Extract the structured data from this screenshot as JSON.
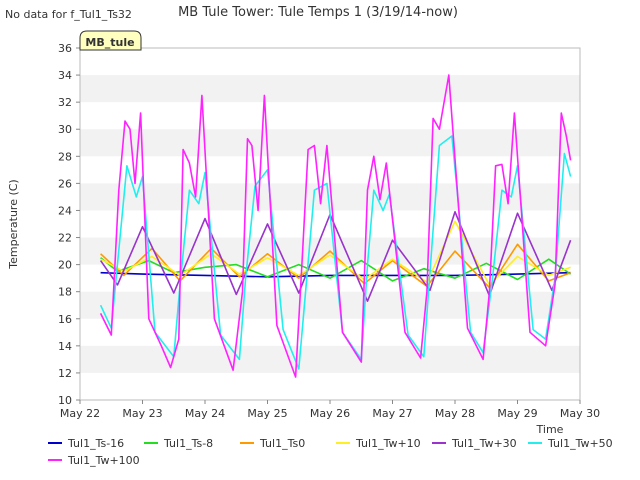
{
  "notice": "No data for f_Tul1_Ts32",
  "badge": "MB_tule",
  "colors": {
    "Tul1_Ts-16": "#0000cc",
    "Tul1_Ts-8": "#22dd22",
    "Tul1_Ts0": "#ff9900",
    "Tul1_Tw+10": "#ffee22",
    "Tul1_Tw+30": "#9933cc",
    "Tul1_Tw+50": "#22eeee",
    "Tul1_Tw+100": "#ff22ff"
  },
  "chart_data": {
    "type": "line",
    "title": "MB Tule Tower: Tule Temps 1 (3/19/14-now)",
    "xlabel": "Time",
    "ylabel": "Temperature (C)",
    "xlim": [
      "May 22",
      "May 30"
    ],
    "ylim": [
      10,
      36
    ],
    "yticks": [
      10,
      12,
      14,
      16,
      18,
      20,
      22,
      24,
      26,
      28,
      30,
      32,
      34,
      36
    ],
    "xticks": [
      "May 22",
      "May 23",
      "May 24",
      "May 25",
      "May 26",
      "May 27",
      "May 28",
      "May 29",
      "May 30"
    ],
    "grid": "horizontal bands",
    "legend": "bottom",
    "x_unit": "days from May 22",
    "series": [
      {
        "name": "Tul1_Ts-16",
        "x": [
          0.33,
          1.0,
          2.0,
          3.0,
          4.0,
          5.0,
          6.0,
          7.0,
          7.85
        ],
        "values": [
          19.4,
          19.3,
          19.2,
          19.1,
          19.2,
          19.2,
          19.2,
          19.3,
          19.4
        ]
      },
      {
        "name": "Tul1_Ts-8",
        "x": [
          0.33,
          0.6,
          1.1,
          1.5,
          2.0,
          2.5,
          3.0,
          3.5,
          4.0,
          4.5,
          5.0,
          5.5,
          6.0,
          6.5,
          7.0,
          7.5,
          7.85
        ],
        "values": [
          20.5,
          19.5,
          20.3,
          19.4,
          19.8,
          20.0,
          19.1,
          20.0,
          19.0,
          20.3,
          18.8,
          19.7,
          19.0,
          20.1,
          18.9,
          20.4,
          19.3
        ]
      },
      {
        "name": "Tul1_Ts0",
        "x": [
          0.33,
          0.7,
          1.15,
          1.6,
          2.1,
          2.55,
          3.0,
          3.5,
          4.0,
          4.55,
          5.0,
          5.55,
          6.0,
          6.55,
          7.0,
          7.5,
          7.85
        ],
        "values": [
          20.8,
          19.2,
          21.2,
          18.8,
          21.2,
          19.1,
          20.8,
          19.0,
          21.0,
          18.6,
          20.3,
          18.4,
          21.0,
          18.3,
          21.5,
          18.8,
          19.4
        ]
      },
      {
        "name": "Tul1_Tw+10",
        "x": [
          0.33,
          0.7,
          1.15,
          1.6,
          2.1,
          2.55,
          3.0,
          3.5,
          4.0,
          4.55,
          5.0,
          5.55,
          6.0,
          6.55,
          7.0,
          7.5,
          7.85
        ],
        "values": [
          20.4,
          19.5,
          20.6,
          19.2,
          20.8,
          19.3,
          20.5,
          19.2,
          20.7,
          18.9,
          20.4,
          18.7,
          23.2,
          18.5,
          20.6,
          19.2,
          19.8
        ]
      },
      {
        "name": "Tul1_Tw+30",
        "x": [
          0.33,
          0.6,
          1.0,
          1.5,
          2.0,
          2.5,
          3.0,
          3.5,
          4.0,
          4.6,
          5.0,
          5.6,
          6.0,
          6.55,
          7.0,
          7.55,
          7.85
        ],
        "values": [
          20.3,
          18.5,
          22.8,
          17.9,
          23.4,
          17.8,
          23.0,
          17.9,
          23.7,
          17.3,
          21.8,
          18.1,
          23.9,
          17.7,
          23.8,
          18.1,
          21.8
        ]
      },
      {
        "name": "Tul1_Tw+50",
        "x": [
          0.33,
          0.5,
          0.75,
          0.9,
          1.0,
          1.2,
          1.5,
          1.6,
          1.75,
          1.9,
          2.0,
          2.25,
          2.55,
          2.65,
          2.8,
          3.0,
          3.25,
          3.5,
          3.6,
          3.75,
          3.95,
          4.2,
          4.5,
          4.6,
          4.7,
          4.85,
          4.95,
          5.25,
          5.5,
          5.6,
          5.75,
          5.95,
          6.25,
          6.45,
          6.6,
          6.75,
          6.9,
          7.0,
          7.25,
          7.45,
          7.6,
          7.75,
          7.85
        ],
        "values": [
          17.0,
          15.3,
          27.3,
          25.0,
          26.5,
          15.0,
          13.2,
          18.5,
          25.5,
          24.5,
          26.8,
          14.8,
          13.0,
          19.0,
          25.8,
          27.0,
          15.2,
          12.3,
          17.5,
          25.5,
          26.0,
          15.0,
          13.0,
          20.0,
          25.5,
          24.0,
          25.2,
          14.8,
          13.2,
          19.5,
          28.8,
          29.5,
          15.0,
          13.5,
          19.0,
          25.5,
          25.0,
          27.3,
          15.2,
          14.5,
          19.0,
          28.2,
          26.5
        ]
      },
      {
        "name": "Tul1_Tw+100",
        "x": [
          0.33,
          0.5,
          0.62,
          0.72,
          0.8,
          0.88,
          0.97,
          1.1,
          1.3,
          1.45,
          1.58,
          1.65,
          1.75,
          1.85,
          1.95,
          2.15,
          2.45,
          2.6,
          2.68,
          2.75,
          2.85,
          2.95,
          3.15,
          3.45,
          3.55,
          3.65,
          3.75,
          3.85,
          3.95,
          4.2,
          4.5,
          4.6,
          4.7,
          4.8,
          4.9,
          5.2,
          5.45,
          5.55,
          5.65,
          5.75,
          5.9,
          6.2,
          6.45,
          6.55,
          6.65,
          6.75,
          6.85,
          6.95,
          7.2,
          7.45,
          7.6,
          7.7,
          7.78,
          7.85
        ],
        "values": [
          16.4,
          14.8,
          25.5,
          30.6,
          30.0,
          26.0,
          31.2,
          16.0,
          14.0,
          12.4,
          14.5,
          28.5,
          27.5,
          25.0,
          32.5,
          16.0,
          12.2,
          18.0,
          29.3,
          28.8,
          24.0,
          32.5,
          15.5,
          11.7,
          20.0,
          28.5,
          28.8,
          24.5,
          28.8,
          15.0,
          12.8,
          25.5,
          28.0,
          24.8,
          27.5,
          15.0,
          13.1,
          18.0,
          30.8,
          30.0,
          34.0,
          15.3,
          13.0,
          18.0,
          27.3,
          27.4,
          24.5,
          31.2,
          15.0,
          14.0,
          18.5,
          31.2,
          29.5,
          27.7
        ]
      }
    ]
  }
}
